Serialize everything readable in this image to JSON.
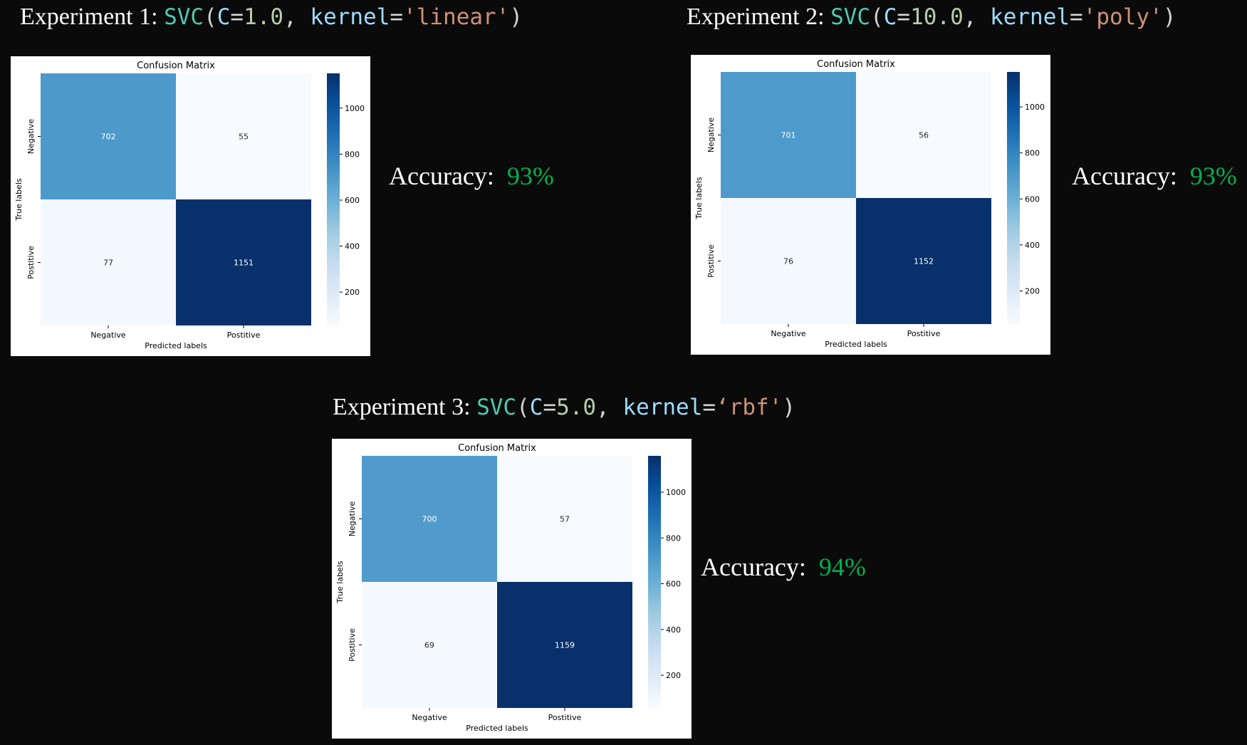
{
  "colors": {
    "background": "#0a0a0a",
    "accuracy_value": "#00b050",
    "cmap": [
      "#f7fbff",
      "#deebf7",
      "#c6dbef",
      "#9ecae1",
      "#6baed6",
      "#4292c6",
      "#2171b5",
      "#08519c",
      "#08306b"
    ]
  },
  "experiments": [
    {
      "title_prefix": "Experiment 1: ",
      "code": {
        "fn": "SVC",
        "open": "(",
        "c_param": "C",
        "eq1": "=",
        "c_value": "1.0",
        "sep": ", ",
        "k_param": "kernel",
        "eq2": "=",
        "k_value": "'linear'",
        "close": ")"
      },
      "accuracy_label": "Accuracy:",
      "accuracy_value": "93%"
    },
    {
      "title_prefix": "Experiment 2: ",
      "code": {
        "fn": "SVC",
        "open": "(",
        "c_param": "C",
        "eq1": "=",
        "c_value": "10.0",
        "sep": ", ",
        "k_param": "kernel",
        "eq2": "=",
        "k_value": "'poly'",
        "close": ")"
      },
      "accuracy_label": "Accuracy:",
      "accuracy_value": "93%"
    },
    {
      "title_prefix": "Experiment 3: ",
      "code": {
        "fn": "SVC",
        "open": "(",
        "c_param": "C",
        "eq1": "=",
        "c_value": "5.0",
        "sep": ", ",
        "k_param": "kernel",
        "eq2": "=",
        "k_value": "‘rbf'",
        "close": ")"
      },
      "accuracy_label": "Accuracy:",
      "accuracy_value": "94%"
    }
  ],
  "chart_data": [
    {
      "type": "heatmap",
      "title": "Confusion Matrix",
      "xlabel": "Predicted labels",
      "ylabel": "True labels",
      "x_categories": [
        "Negative",
        "Postitive"
      ],
      "y_categories": [
        "Negative",
        "Postitive"
      ],
      "values": [
        [
          702,
          55
        ],
        [
          77,
          1151
        ]
      ],
      "colorbar_ticks": [
        200,
        400,
        600,
        800,
        1000
      ],
      "colorbar_range": [
        55,
        1151
      ]
    },
    {
      "type": "heatmap",
      "title": "Confusion Matrix",
      "xlabel": "Predicted labels",
      "ylabel": "True labels",
      "x_categories": [
        "Negative",
        "Postitive"
      ],
      "y_categories": [
        "Negative",
        "Postitive"
      ],
      "values": [
        [
          701,
          56
        ],
        [
          76,
          1152
        ]
      ],
      "colorbar_ticks": [
        200,
        400,
        600,
        800,
        1000
      ],
      "colorbar_range": [
        56,
        1152
      ]
    },
    {
      "type": "heatmap",
      "title": "Confusion Matrix",
      "xlabel": "Predicted labels",
      "ylabel": "True labels",
      "x_categories": [
        "Negative",
        "Postitive"
      ],
      "y_categories": [
        "Negative",
        "Postitive"
      ],
      "values": [
        [
          700,
          57
        ],
        [
          69,
          1159
        ]
      ],
      "colorbar_ticks": [
        200,
        400,
        600,
        800,
        1000
      ],
      "colorbar_range": [
        57,
        1159
      ]
    }
  ]
}
